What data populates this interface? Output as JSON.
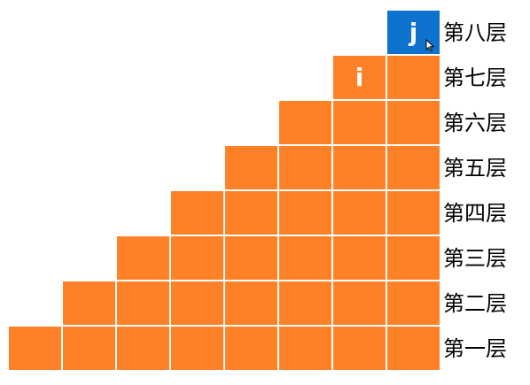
{
  "staircase": {
    "total_columns": 8,
    "colors": {
      "cell": "#fe8127",
      "highlight": "#0e72cf",
      "label_text": "#000000",
      "cell_text": "#ffffff"
    },
    "rows": [
      {
        "label": "第八层",
        "width": 1
      },
      {
        "label": "第七层",
        "width": 2
      },
      {
        "label": "第六层",
        "width": 3
      },
      {
        "label": "第五层",
        "width": 4
      },
      {
        "label": "第四层",
        "width": 5
      },
      {
        "label": "第三层",
        "width": 6
      },
      {
        "label": "第二层",
        "width": 7
      },
      {
        "label": "第一层",
        "width": 8
      }
    ],
    "markers": [
      {
        "row": 0,
        "col": 7,
        "text": "j",
        "highlight": true
      },
      {
        "row": 1,
        "col": 6,
        "text": "i",
        "highlight": false
      }
    ]
  },
  "cursor": {
    "icon": "mouse-pointer-icon"
  }
}
